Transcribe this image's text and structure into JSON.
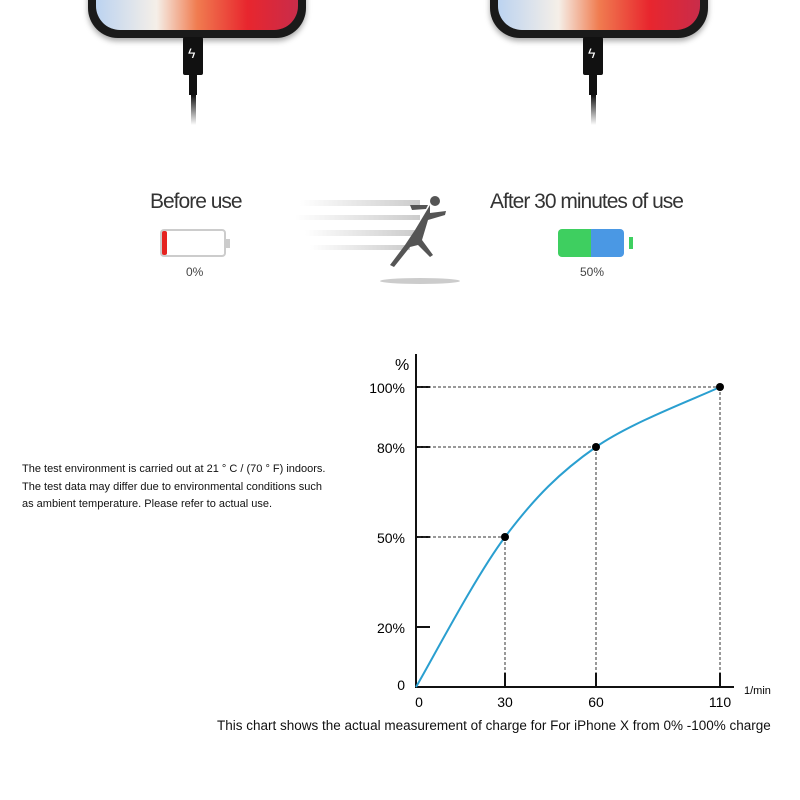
{
  "comparison": {
    "before": {
      "label": "Before use",
      "percent_label": "0%",
      "level": 0,
      "color": "#e52320"
    },
    "after": {
      "label": "After 30 minutes of use",
      "percent_label": "50%",
      "level": 50,
      "colors": [
        "#3ecf60",
        "#4a98e4"
      ]
    },
    "connector_icon": "lightning-bolt-icon",
    "runner_icon": "running-man-icon"
  },
  "note": {
    "lines": [
      "The test environment is carried out at 21 ° C / (70 ° F) indoors.",
      "The test data may differ due to environmental conditions such",
      "as ambient temperature. Please refer to actual use."
    ]
  },
  "chart_data": {
    "type": "line",
    "title": "",
    "xlabel": "1/min",
    "ylabel": "%",
    "x_ticks": [
      "0",
      "30",
      "60",
      "110"
    ],
    "y_ticks": [
      "0",
      "20%",
      "50%",
      "80%",
      "100%"
    ],
    "series": [
      {
        "points": [
          {
            "x": 0,
            "y": 0
          },
          {
            "x": 30,
            "y": 50
          },
          {
            "x": 60,
            "y": 80
          },
          {
            "x": 110,
            "y": 100
          }
        ]
      }
    ],
    "markers": [
      {
        "x": 30,
        "y": 50
      },
      {
        "x": 60,
        "y": 80
      },
      {
        "x": 110,
        "y": 100
      }
    ],
    "ylim": [
      0,
      100
    ],
    "xlim": [
      0,
      110
    ],
    "grid": false,
    "line_color": "#2a9fd0",
    "caption": "This chart shows the actual measurement of charge for For iPhone X from 0% -100% charge"
  }
}
